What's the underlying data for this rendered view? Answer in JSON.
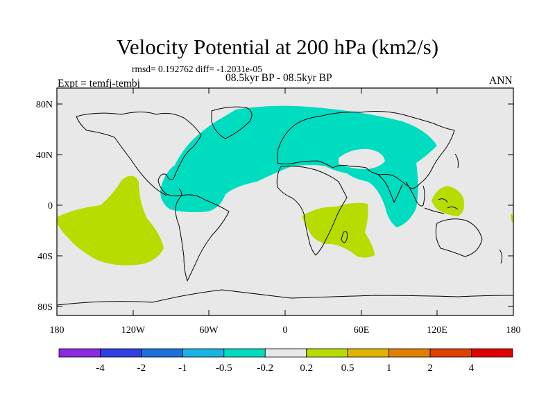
{
  "title": "Velocity Potential at 200 hPa (km2/s)",
  "stats": "rmsd= 0.192762 diff= -1.2031e-05",
  "experiment": "Expt = temfj-tembj",
  "period": "08.5kyr BP - 08.5kyr BP",
  "season": "ANN",
  "axes": {
    "lat_labels": [
      "80N",
      "40N",
      "0",
      "40S",
      "80S"
    ],
    "lon_labels": [
      "180",
      "120W",
      "60W",
      "0",
      "60E",
      "120E",
      "180"
    ]
  },
  "colorbar": {
    "colors": [
      "#8a2be2",
      "#2f3fe0",
      "#1e6fdc",
      "#18b4e6",
      "#00dcc0",
      "#e8e8e8",
      "#b7dc00",
      "#e0b400",
      "#e08000",
      "#e04000",
      "#e00000"
    ],
    "labels": [
      "-4",
      "-2",
      "-1",
      "-0.5",
      "-0.2",
      "0.2",
      "0.5",
      "1",
      "2",
      "4"
    ]
  },
  "map": {
    "background_color": "#e8e8e8",
    "negative_color": "#00dcc0",
    "positive_color": "#b7dc00",
    "coast_color": "#000000"
  }
}
